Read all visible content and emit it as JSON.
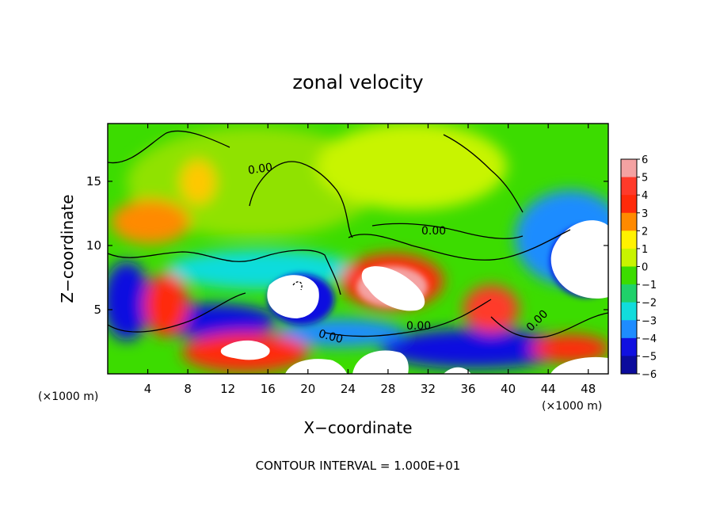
{
  "chart_data": {
    "type": "heatmap",
    "title": "zonal velocity",
    "xlabel": "X−coordinate",
    "ylabel": "Z−coordinate",
    "x_unit_left": "(×1000 m)",
    "x_unit_right": "(×1000 m)",
    "footer": "CONTOUR INTERVAL = 1.000E+01",
    "xlim": [
      0,
      50
    ],
    "ylim": [
      0,
      19.5
    ],
    "xticks": [
      4,
      8,
      12,
      16,
      20,
      24,
      28,
      32,
      36,
      40,
      44,
      48
    ],
    "yticks": [
      5,
      10,
      15
    ],
    "colorbar": {
      "levels": [
        6,
        5,
        4,
        3,
        2,
        1,
        0,
        -1,
        -2,
        -3,
        -4,
        -5,
        -6
      ],
      "colors": [
        "#f4a2a2",
        "#ff3a2a",
        "#ff2a0a",
        "#ff8a00",
        "#fff200",
        "#c8f400",
        "#3cdc00",
        "#1fd16a",
        "#11dcdc",
        "#1e8cff",
        "#1010e0",
        "#0b0b9c",
        "#7a00b8"
      ]
    },
    "contour_labels": [
      "0.00",
      "0.00",
      "0.00",
      "0.00",
      "0.00"
    ]
  }
}
